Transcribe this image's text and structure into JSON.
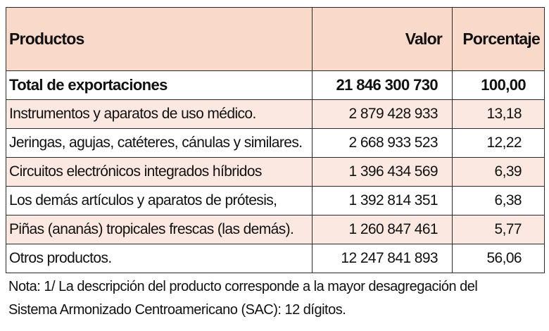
{
  "table": {
    "headers": {
      "product": "Productos",
      "value": "Valor",
      "percent": "Porcentaje"
    },
    "total": {
      "label": "Total de exportaciones",
      "value": "21 846 300 730",
      "percent": "100,00"
    },
    "rows": [
      {
        "label": "Instrumentos y aparatos de uso médico.",
        "value": "2 879 428 933",
        "percent": "13,18"
      },
      {
        "label": "Jeringas, agujas, catéteres, cánulas y similares.",
        "value": "2 668 933 523",
        "percent": "12,22"
      },
      {
        "label": "Circuitos electrónicos integrados híbridos",
        "value": "1 396 434 569",
        "percent": "6,39"
      },
      {
        "label": "Los demás artículos y aparatos de prótesis,",
        "value": "1 392 814 351",
        "percent": "6,38"
      },
      {
        "label": "Piñas (ananás) tropicales frescas (las demás).",
        "value": "1 260 847 461",
        "percent": "5,77"
      },
      {
        "label": "Otros productos.",
        "value": "12 247 841 893",
        "percent": "56,06"
      }
    ]
  },
  "note": {
    "line1": "Nota: 1/ La descripción del producto corresponde a la mayor desagregación del",
    "line2": "Sistema Armonizado Centroamericano (SAC): 12 dígitos."
  },
  "colors": {
    "header_bg": "#f8d9ca",
    "shaded_row_bg": "#fbe9e1",
    "border": "#2b2b2b"
  }
}
